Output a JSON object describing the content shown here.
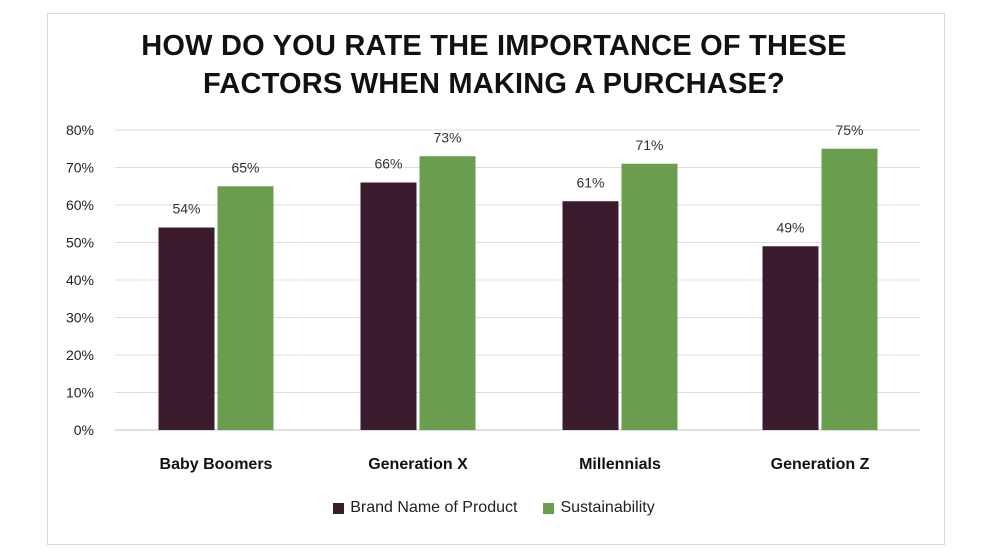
{
  "chart_data": {
    "type": "bar",
    "title": [
      "HOW DO YOU RATE THE IMPORTANCE OF THESE",
      "FACTORS WHEN MAKING A PURCHASE?"
    ],
    "categories": [
      "Baby Boomers",
      "Generation X",
      "Millennials",
      "Generation Z"
    ],
    "series": [
      {
        "name": "Brand Name of Product",
        "values": [
          54,
          66,
          61,
          49
        ],
        "labels": [
          "54%",
          "66%",
          "61%",
          "49%"
        ],
        "color": "#3b1c2e"
      },
      {
        "name": "Sustainability",
        "values": [
          65,
          73,
          71,
          75
        ],
        "labels": [
          "65%",
          "73%",
          "71%",
          "75%"
        ],
        "color": "#6a9e4f"
      }
    ],
    "ylim": [
      0,
      80
    ],
    "yticks": [
      "0%",
      "10%",
      "20%",
      "30%",
      "40%",
      "50%",
      "60%",
      "70%",
      "80%"
    ],
    "grid": true,
    "legend_position": "bottom"
  }
}
